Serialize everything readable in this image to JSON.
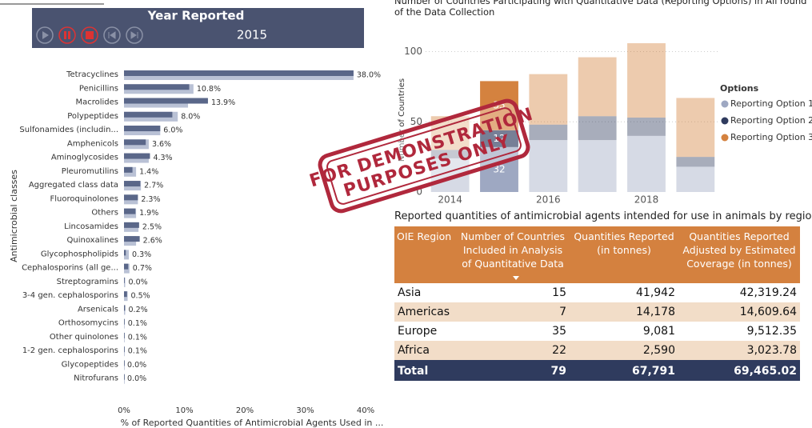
{
  "slicer": {
    "title": "Year Reported",
    "value": "2015"
  },
  "chart_data": [
    {
      "type": "bar",
      "orientation": "horizontal",
      "grid": false,
      "y_label": "Antimicrobial classes",
      "x_label": "% of Reported Quantities of Antimicrobial Agents Used in ...",
      "categories": [
        "Tetracyclines",
        "Penicillins",
        "Macrolides",
        "Polypeptides",
        "Sulfonamides (includin...",
        "Amphenicols",
        "Aminoglycosides",
        "Pleuromutilins",
        "Aggregated class data",
        "Fluoroquinolones",
        "Others",
        "Lincosamides",
        "Quinoxalines",
        "Glycophospholipids",
        "Cephalosporins (all ge...",
        "Streptogramins",
        "3-4 gen. cephalosporins",
        "Arsenicals",
        "Orthosomycins",
        "Other quinolones",
        "1-2 gen. cephalosporins",
        "Glycopeptides",
        "Nitrofurans"
      ],
      "series": [
        {
          "color": "#b9c1d5",
          "values": [
            38.0,
            11.5,
            10.6,
            8.9,
            6.0,
            4.1,
            4.1,
            2.0,
            2.8,
            2.3,
            2.0,
            2.4,
            2.0,
            0.8,
            0.9,
            0.2,
            0.6,
            0.2,
            0.1,
            0.1,
            0.1,
            0,
            0
          ]
        },
        {
          "color": "#5a6789",
          "values": [
            38.0,
            10.8,
            13.9,
            8.0,
            6.0,
            3.6,
            4.3,
            1.4,
            2.7,
            2.3,
            1.9,
            2.5,
            2.6,
            0.3,
            0.7,
            0.0,
            0.5,
            0.2,
            0.1,
            0.1,
            0.1,
            0.0,
            0.0
          ],
          "value_labels": [
            "38.0%",
            "10.8%",
            "13.9%",
            "8.0%",
            "6.0%",
            "3.6%",
            "4.3%",
            "1.4%",
            "2.7%",
            "2.3%",
            "1.9%",
            "2.5%",
            "2.6%",
            "0.3%",
            "0.7%",
            "0.0%",
            "0.5%",
            "0.2%",
            "0.1%",
            "0.1%",
            "0.1%",
            "0.0%",
            "0.0%"
          ]
        }
      ],
      "xlim": [
        0,
        40
      ],
      "xticks": [
        {
          "value": 0,
          "label": "0%"
        },
        {
          "value": 10,
          "label": "10%"
        },
        {
          "value": 20,
          "label": "20%"
        },
        {
          "value": 30,
          "label": "30%"
        },
        {
          "value": 40,
          "label": "40%"
        }
      ]
    },
    {
      "type": "bar",
      "stacked": true,
      "grid": true,
      "title": "Number of Countries Participating with Quantitative Data (Reporting Options) in All round of the Data Collection",
      "y_label": "Number of Countries",
      "legend_title": "Options",
      "legend": "right",
      "highlight_x": 2015,
      "x": [
        2014,
        2015,
        2016,
        2017,
        2018,
        2019
      ],
      "xlim": [
        2013.5,
        2019.5
      ],
      "xticks": [
        2014,
        2016,
        2018
      ],
      "ylim": [
        0,
        110
      ],
      "yticks": [
        0,
        50,
        100
      ],
      "series": [
        {
          "name": "Reporting Option 1",
          "color": "#9ea8c2",
          "values": [
            24,
            32,
            37,
            37,
            40,
            18
          ]
        },
        {
          "name": "Reporting Option 2",
          "color": "#2f3b5e",
          "values": [
            6,
            12,
            11,
            17,
            13,
            7
          ]
        },
        {
          "name": "Reporting Option 3",
          "color": "#d4823f",
          "values": [
            24,
            35,
            36,
            42,
            53,
            42
          ]
        }
      ]
    }
  ],
  "table": {
    "title": "Reported quantities of antimicrobial agents intended for use in animals by region",
    "columns": [
      "OIE Region",
      "Number of Countries Included in Analysis of Quantitative Data",
      "Quantities Reported (in tonnes)",
      "Quantities Reported Adjusted by Estimated Coverage (in tonnes)"
    ],
    "rows": [
      [
        "Asia",
        "15",
        "41,942",
        "42,319.24"
      ],
      [
        "Americas",
        "7",
        "14,178",
        "14,609.64"
      ],
      [
        "Europe",
        "35",
        "9,081",
        "9,512.35"
      ],
      [
        "Africa",
        "22",
        "2,590",
        "3,023.78"
      ]
    ],
    "total": [
      "Total",
      "79",
      "67,791",
      "69,465.02"
    ]
  },
  "watermark": [
    "FOR DEMONSTRATION",
    "PURPOSES ONLY"
  ]
}
